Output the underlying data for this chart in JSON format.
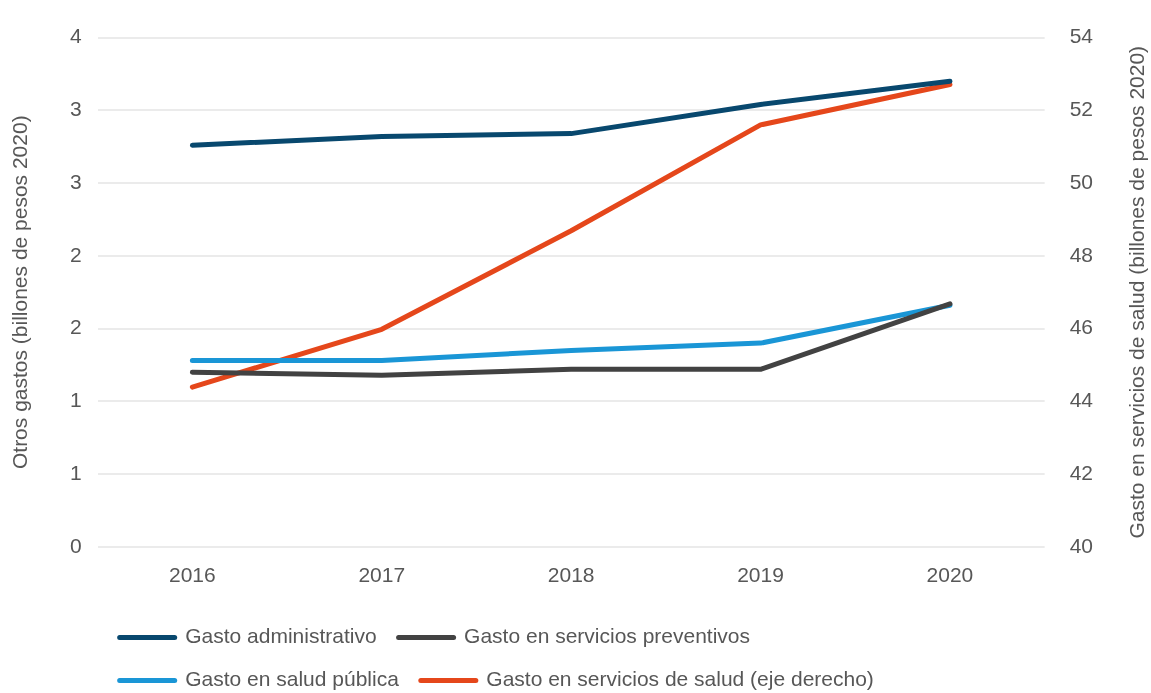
{
  "chart_data": {
    "type": "line",
    "categories": [
      "2016",
      "2017",
      "2018",
      "2019",
      "2020"
    ],
    "ylabel": "Otros gastos (billones de pesos 2020)",
    "y2label": "Gasto en servicios de salud (billones de pesos 2020)",
    "ylim": [
      0,
      3.5
    ],
    "yticks": [
      0,
      {
        "value": 0.5,
        "label": "1"
      },
      1,
      {
        "value": 1.5,
        "label": "2"
      },
      2,
      {
        "value": 2.5,
        "label": "3"
      },
      3,
      {
        "value": 3.5,
        "label": "4"
      }
    ],
    "y2lim": [
      40,
      54
    ],
    "y2ticks": [
      40,
      42,
      44,
      46,
      48,
      50,
      52,
      54
    ],
    "grid": "y",
    "legend": "bottom",
    "marker": "none",
    "line_style": "solid",
    "series": [
      {
        "name": "Gasto administrativo",
        "color": "#08486e",
        "values": [
          2.76,
          2.82,
          2.84,
          3.04,
          3.2
        ]
      },
      {
        "name": "Gasto en servicios preventivos",
        "color": "#424242",
        "values": [
          1.2,
          1.18,
          1.22,
          1.22,
          1.67
        ]
      },
      {
        "name": "Gasto en salud pública",
        "color": "#1a96d6",
        "values": [
          1.28,
          1.28,
          1.35,
          1.4,
          1.66
        ]
      },
      {
        "name": "Gasto en servicios de salud (eje derecho)",
        "color": "#e5471b",
        "axis": "y2",
        "values": [
          44.39,
          45.98,
          48.69,
          51.6,
          52.71
        ]
      }
    ]
  }
}
